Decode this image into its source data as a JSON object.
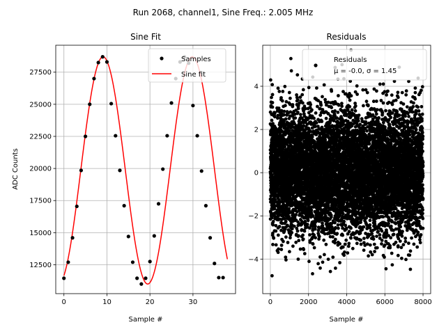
{
  "suptitle": "Run 2068, channel1, Sine Freq.: 2.005 MHz",
  "colors": {
    "samples": "#000000",
    "fit": "#ff0000",
    "grid": "#b0b0b0"
  },
  "chart_data": [
    {
      "type": "scatter",
      "title": "Sine Fit",
      "xlabel": "Sample #",
      "ylabel": "ADC Counts",
      "xlim": [
        -1.9,
        39.9
      ],
      "ylim": [
        10250,
        29600
      ],
      "xticks": [
        0,
        10,
        20,
        30
      ],
      "yticks": [
        12500,
        15000,
        17500,
        20000,
        22500,
        25000,
        27500
      ],
      "ytick_labels": [
        "12500",
        "15000",
        "17500",
        "20000",
        "22500",
        "25000",
        "27500"
      ],
      "grid": true,
      "legend": {
        "placement": "top-right",
        "entries": [
          "Samples",
          "Sine fit"
        ]
      },
      "fit": {
        "offset": 19850,
        "amplitude": 8850,
        "period": 20.75,
        "phase_max_at": 9.1,
        "x_range": [
          0,
          38
        ]
      },
      "series": [
        {
          "name": "Samples",
          "x": [
            0,
            1,
            2,
            3,
            4,
            5,
            6,
            7,
            8,
            9,
            10,
            11,
            12,
            13,
            14,
            15,
            16,
            17,
            18,
            19,
            20,
            21,
            22,
            23,
            24,
            25,
            26,
            27,
            28,
            29,
            30,
            31,
            32,
            33,
            34,
            35,
            36,
            37
          ],
          "y": [
            11450,
            12700,
            14600,
            17050,
            19850,
            22500,
            25000,
            27000,
            28250,
            28700,
            28300,
            25050,
            22550,
            19850,
            17100,
            14700,
            12700,
            11450,
            11000,
            11450,
            12750,
            14750,
            17250,
            19950,
            22550,
            25100,
            27000,
            28300,
            28700,
            28200,
            24900,
            22550,
            19800,
            17100,
            14600,
            12600,
            11500,
            11500
          ]
        }
      ]
    },
    {
      "type": "scatter",
      "title": "Residuals",
      "xlabel": "Sample #",
      "ylabel": "",
      "xlim": [
        -400,
        8400
      ],
      "ylim": [
        -5.6,
        5.9
      ],
      "xticks": [
        0,
        2000,
        4000,
        6000,
        8000
      ],
      "yticks": [
        -4,
        -2,
        0,
        2,
        4
      ],
      "grid": true,
      "legend": {
        "placement": "top-right",
        "entries": [
          "Residuals",
          "μ = -0.0, σ = 1.45"
        ]
      },
      "stats": {
        "mean": -0.0,
        "std": 1.45,
        "n_samples": 8000
      },
      "series": [
        {
          "name": "Residuals"
        }
      ]
    }
  ]
}
